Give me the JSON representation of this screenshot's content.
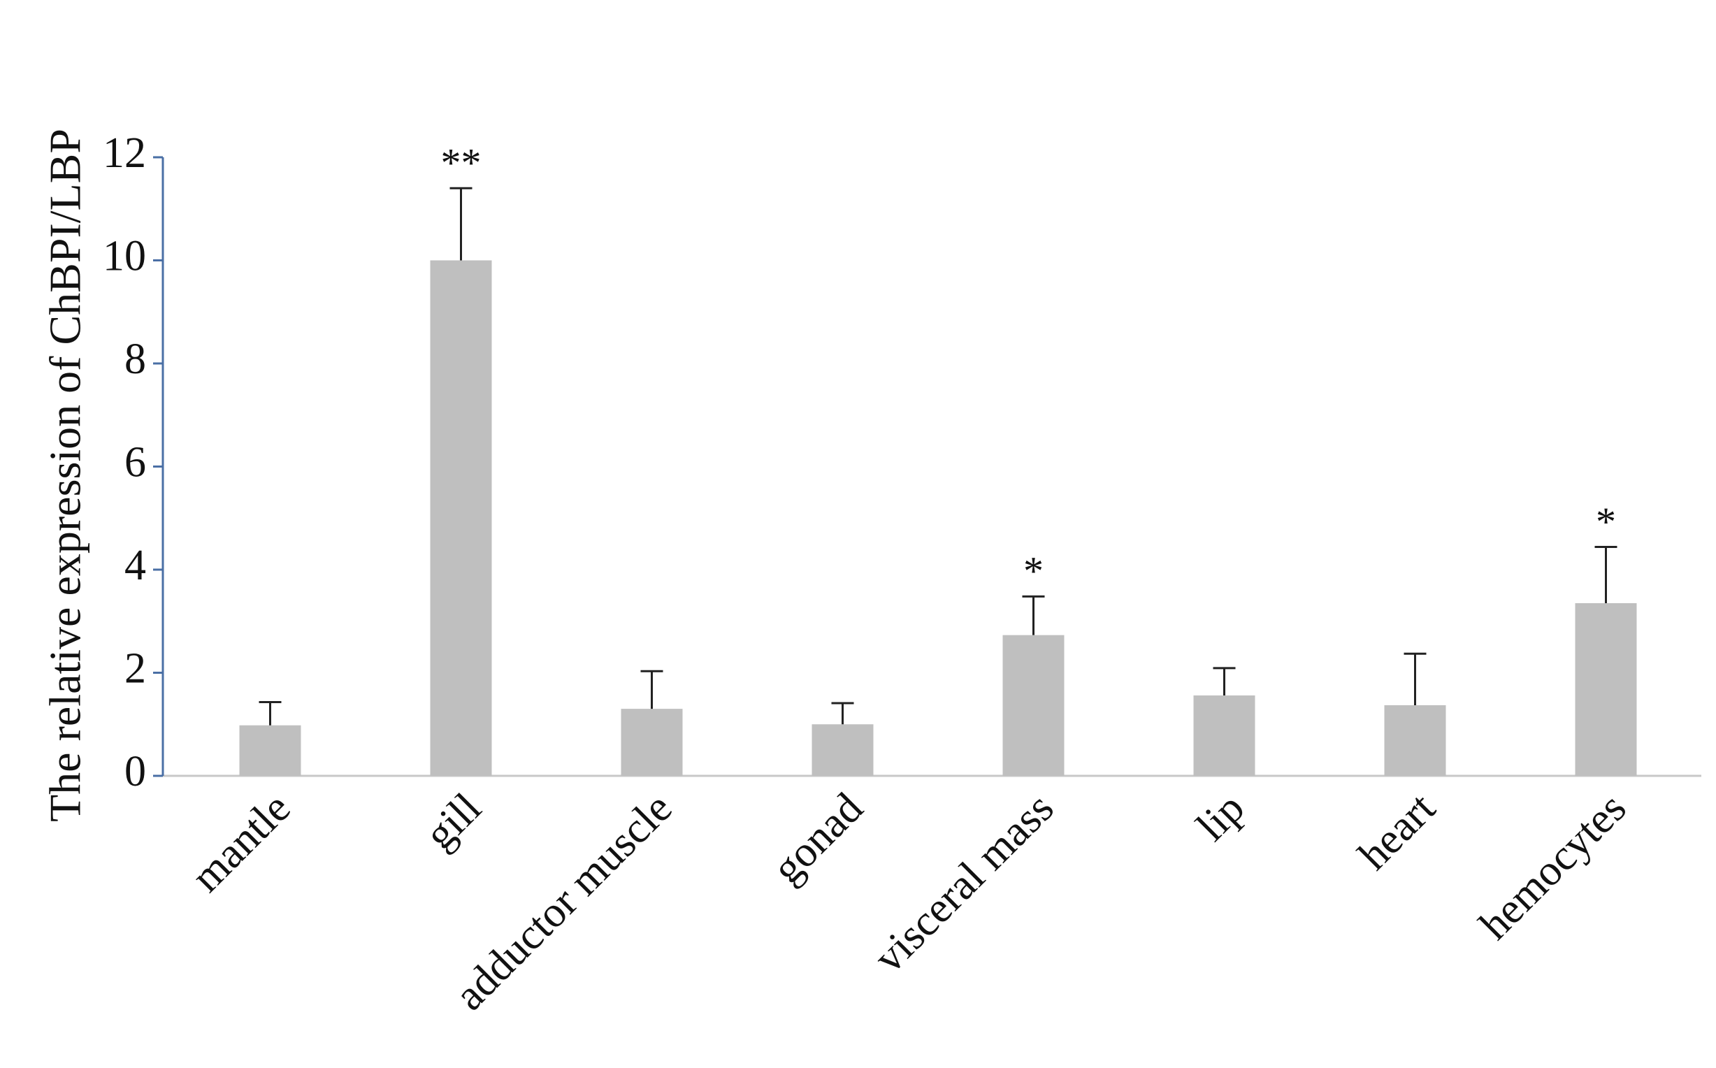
{
  "chart_data": {
    "type": "bar",
    "y_label": "The relative expression of ChBPI/LBP",
    "categories": [
      "mantle",
      "gill",
      "adductor muscle",
      "gonad",
      "visceral mass",
      "lip",
      "heart",
      "hemocytes"
    ],
    "values": [
      0.98,
      10.0,
      1.3,
      1.0,
      2.73,
      1.56,
      1.37,
      3.35
    ],
    "errors": [
      0.45,
      1.4,
      0.73,
      0.41,
      0.75,
      0.53,
      1.0,
      1.09
    ],
    "significance": [
      null,
      "**",
      null,
      null,
      "*",
      null,
      null,
      "*"
    ],
    "color": "#bfbfbf",
    "ylim": [
      0,
      12
    ],
    "yticks": [
      0,
      2,
      4,
      6,
      8,
      10,
      12
    ],
    "grid": false
  }
}
